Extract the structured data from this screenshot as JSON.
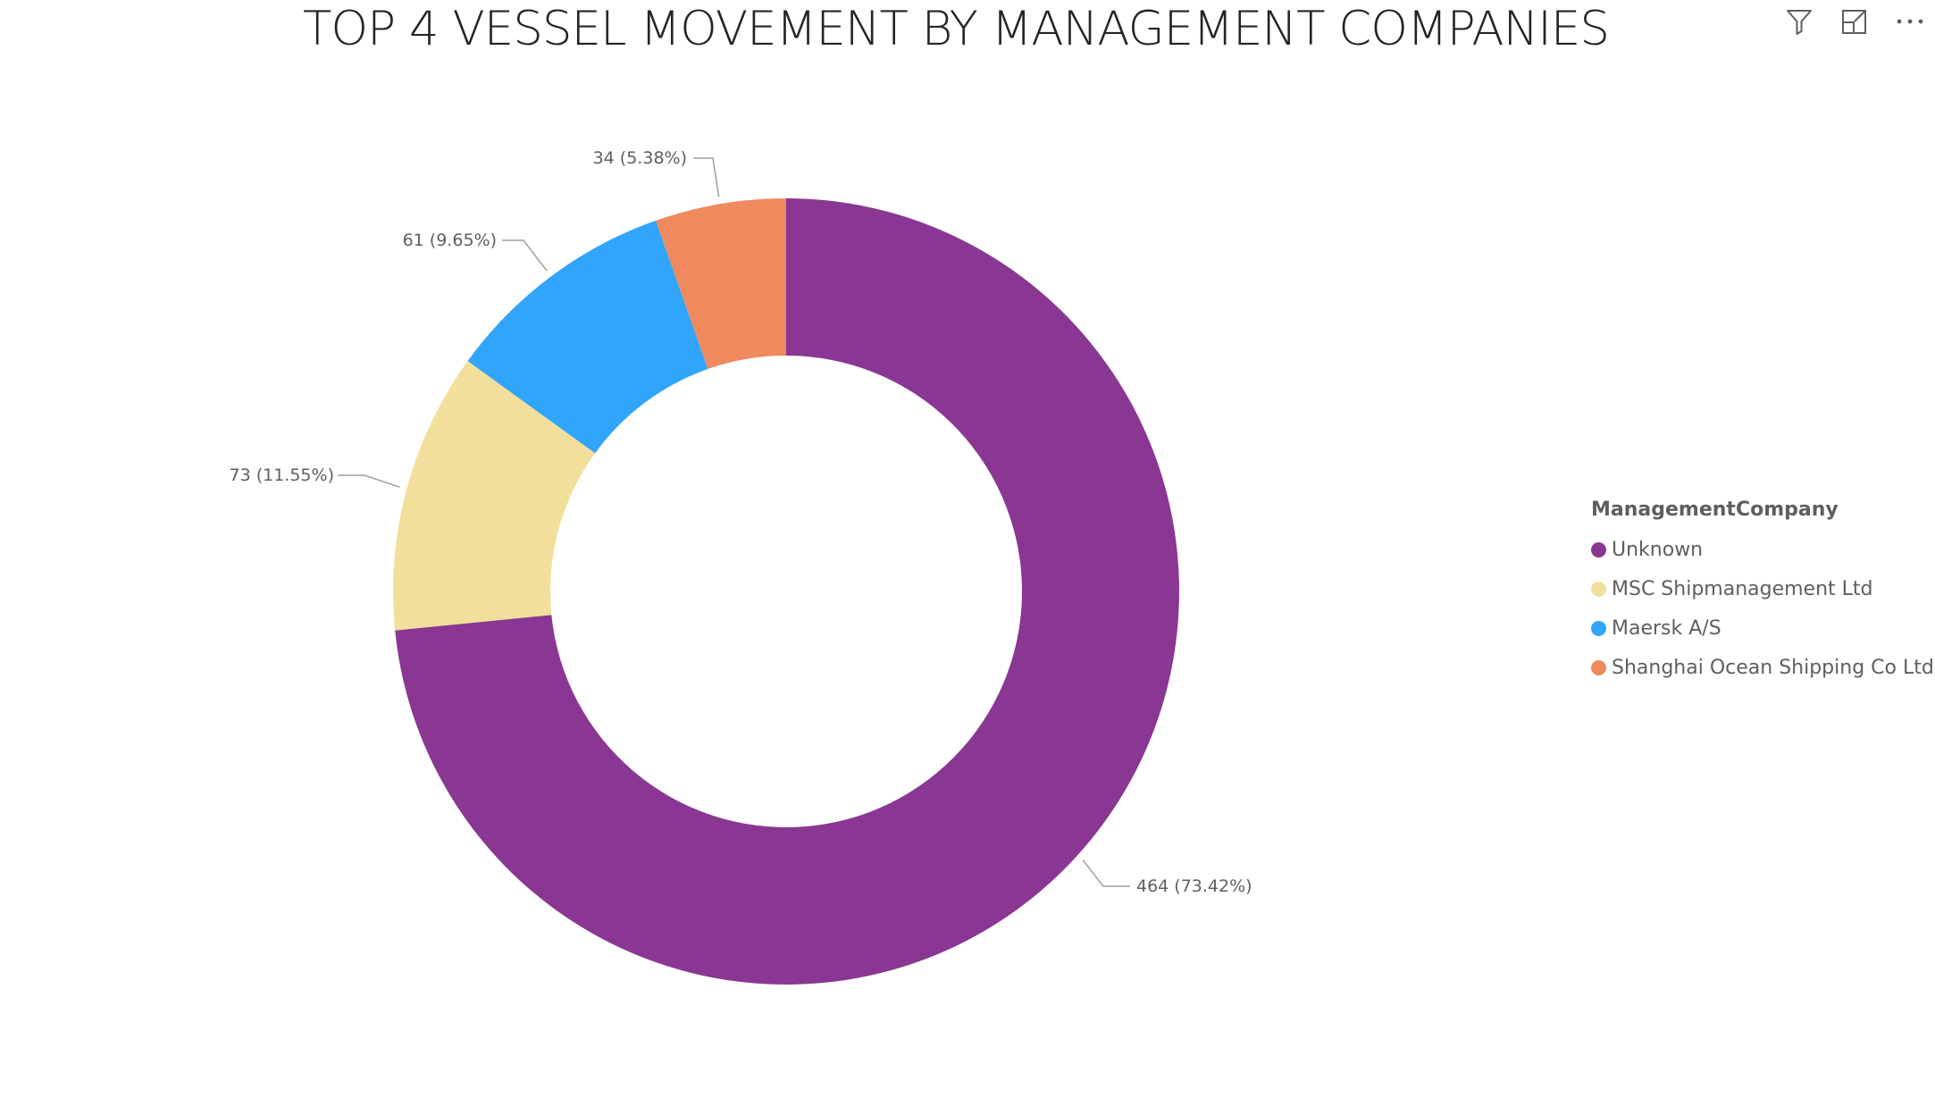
{
  "header": {
    "title": "TOP 4 VESSEL MOVEMENT BY MANAGEMENT COMPANIES",
    "icons": [
      "filter-icon",
      "focus-mode-icon",
      "more-options-icon"
    ]
  },
  "legend": {
    "title": "ManagementCompany"
  },
  "chart_data": {
    "type": "pie",
    "variant": "donut",
    "title": "TOP 4 VESSEL MOVEMENT BY MANAGEMENT COMPANIES",
    "legend_title": "ManagementCompany",
    "legend_position": "right",
    "categories": [
      "Unknown",
      "MSC Shipmanagement Ltd",
      "Maersk A/S",
      "Shanghai Ocean Shipping Co Ltd"
    ],
    "values": [
      464,
      73,
      61,
      34
    ],
    "percentages": [
      "73.42%",
      "11.55%",
      "9.65%",
      "5.38%"
    ],
    "data_labels": [
      "464 (73.42%)",
      "73 (11.55%)",
      "61 (9.65%)",
      "34 (5.38%)"
    ],
    "colors": [
      "#893792",
      "#F2DF9B",
      "#31A5FC",
      "#EE8A5E"
    ]
  }
}
